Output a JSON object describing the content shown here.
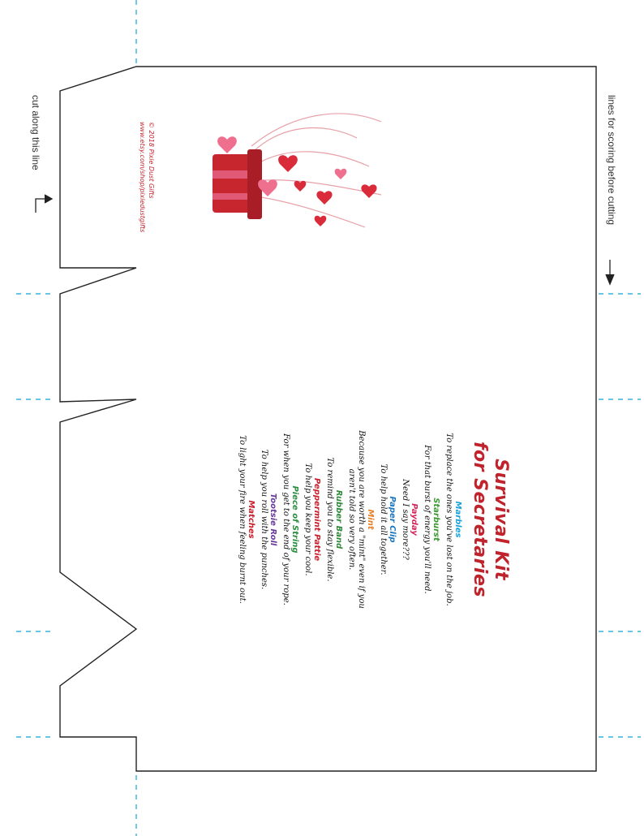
{
  "labels": {
    "cut": "cut along this line",
    "score": "lines for scoring before cutting"
  },
  "card": {
    "title_line1": "Survival Kit",
    "title_line2": "for Secretaries",
    "items": [
      {
        "name": "Marbles",
        "desc": "To replace the ones you've lost on the job.",
        "color": "#1aa3d9"
      },
      {
        "name": "Starburst",
        "desc": "For that burst of energy you'll need.",
        "color": "#3a9a2f"
      },
      {
        "name": "Payday",
        "desc": "Need I say more???",
        "color": "#d4265b"
      },
      {
        "name": "Paper Clip",
        "desc": "To help hold it all together.",
        "color": "#1a78c2"
      },
      {
        "name": "Mint",
        "desc": "Because you are worth a \"mint\" even if you aren't told so very often.",
        "color": "#e8822a"
      },
      {
        "name": "Rubber Band",
        "desc": "To remind you to stay flexible.",
        "color": "#2f8a3a"
      },
      {
        "name": "Peppermint Pattie",
        "desc": "To help you keep your cool.",
        "color": "#c9202e"
      },
      {
        "name": "Piece of String",
        "desc": "For when you get to the end of your rope.",
        "color": "#2a8f3e"
      },
      {
        "name": "Tootsie Roll",
        "desc": "To help you roll with the punches.",
        "color": "#6a3b9c"
      },
      {
        "name": "Matches",
        "desc": "To light your fire when feeling burnt out.",
        "color": "#c9202e"
      }
    ]
  },
  "copyright": {
    "line1": "© 2018 Pixie Dust Gifts",
    "line2": "www.etsy.com/shop/pixiedustgifts"
  },
  "colors": {
    "accent": "#c0232b",
    "guide": "#3ab0d8"
  },
  "icons": [
    "gift-box-hearts-illustration",
    "arrow-icon"
  ]
}
